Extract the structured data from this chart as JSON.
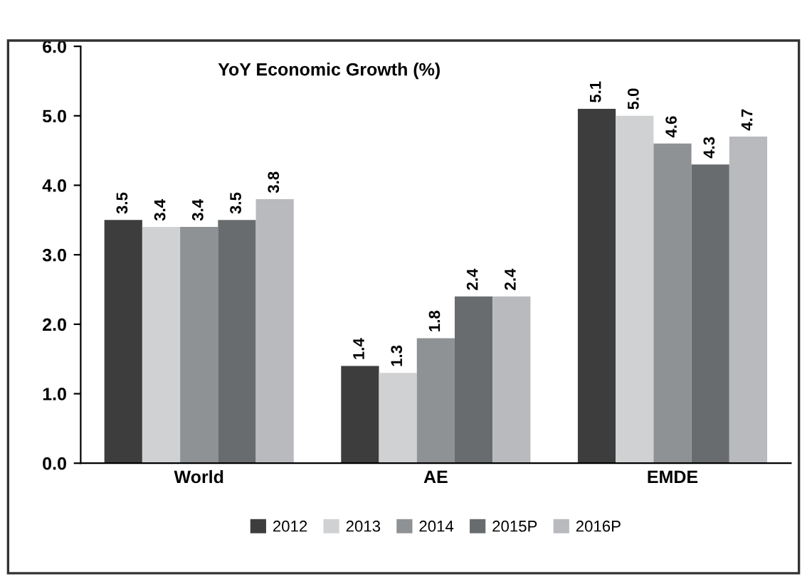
{
  "chart_data": {
    "type": "bar",
    "title": "YoY Economic Growth (%)",
    "categories": [
      "World",
      "AE",
      "EMDE"
    ],
    "series": [
      {
        "name": "2012",
        "color": "#3d3d3d",
        "values": [
          3.5,
          1.4,
          5.1
        ],
        "value_labels": [
          "3.5",
          "1.4",
          "5.1"
        ]
      },
      {
        "name": "2013",
        "color": "#d0d1d3",
        "values": [
          3.4,
          1.3,
          5.0
        ],
        "value_labels": [
          "3.4",
          "1.3",
          "5.0"
        ]
      },
      {
        "name": "2014",
        "color": "#8f9294",
        "values": [
          3.4,
          1.8,
          4.6
        ],
        "value_labels": [
          "3.4",
          "1.8",
          "4.6"
        ]
      },
      {
        "name": "2015P",
        "color": "#696c6f",
        "values": [
          3.5,
          2.4,
          4.3
        ],
        "value_labels": [
          "3.5",
          "2.4",
          "4.3"
        ]
      },
      {
        "name": "2016P",
        "color": "#b9babd",
        "values": [
          3.8,
          2.4,
          4.7
        ],
        "value_labels": [
          "3.8",
          "2.4",
          "4.7"
        ]
      }
    ],
    "ylim": [
      0,
      6
    ],
    "yticks": [
      "0.0",
      "1.0",
      "2.0",
      "3.0",
      "4.0",
      "5.0",
      "6.0"
    ],
    "grid": false,
    "legend": "bottom"
  }
}
